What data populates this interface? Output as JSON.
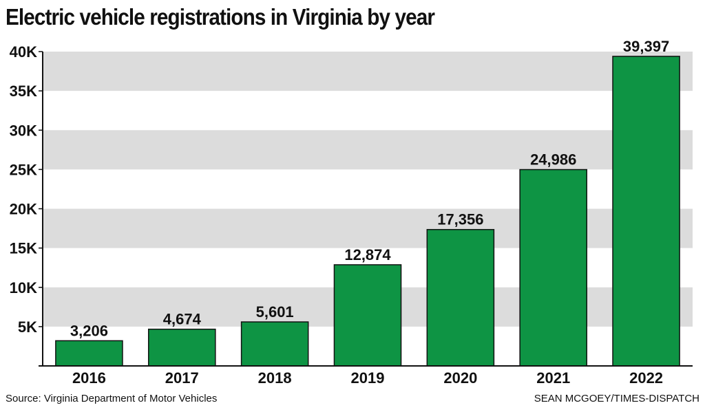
{
  "chart_data": {
    "type": "bar",
    "title": "Electric vehicle registrations in Virginia by year",
    "categories": [
      "2016",
      "2017",
      "2018",
      "2019",
      "2020",
      "2021",
      "2022"
    ],
    "values": [
      3206,
      4674,
      5601,
      12874,
      17356,
      24986,
      39397
    ],
    "value_labels": [
      "3,206",
      "4,674",
      "5,601",
      "12,874",
      "17,356",
      "24,986",
      "39,397"
    ],
    "yticks": [
      5000,
      10000,
      15000,
      20000,
      25000,
      30000,
      35000,
      40000
    ],
    "ytick_labels": [
      "5K",
      "10K",
      "15K",
      "20K",
      "25K",
      "30K",
      "35K",
      "40K"
    ],
    "ylim": [
      0,
      40000
    ],
    "xlabel": "",
    "ylabel": "",
    "grid": "alternating horizontal bands",
    "colors": {
      "bar": "#0e9444",
      "band": "#dcdcdc",
      "axis": "#111111"
    }
  },
  "footer": {
    "source": "Source: Virginia Department of Motor Vehicles",
    "credit": "SEAN MCGOEY/TIMES-DISPATCH"
  }
}
